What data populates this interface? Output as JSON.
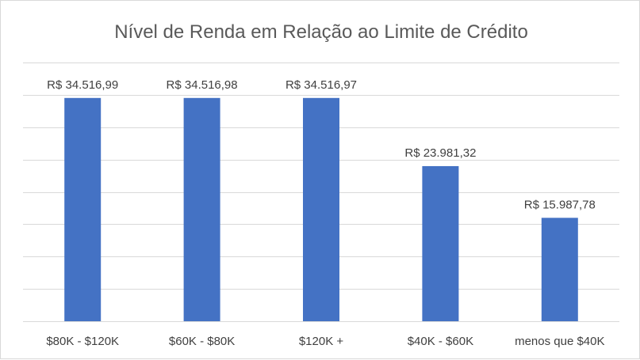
{
  "chart_data": {
    "type": "bar",
    "title": "Nível de Renda em Relação ao Limite de Crédito",
    "categories": [
      "$80K - $120K",
      "$60K - $80K",
      "$120K +",
      "$40K - $60K",
      "menos que $40K"
    ],
    "values": [
      34516.99,
      34516.98,
      34516.97,
      23981.32,
      15987.78
    ],
    "data_labels": [
      "R$ 34.516,99",
      "R$ 34.516,98",
      "R$ 34.516,97",
      "R$ 23.981,32",
      "R$ 15.987,78"
    ],
    "ylim": [
      0,
      40000
    ],
    "grid": true,
    "legend": "none",
    "colors": {
      "bar": "#4472c4"
    }
  }
}
